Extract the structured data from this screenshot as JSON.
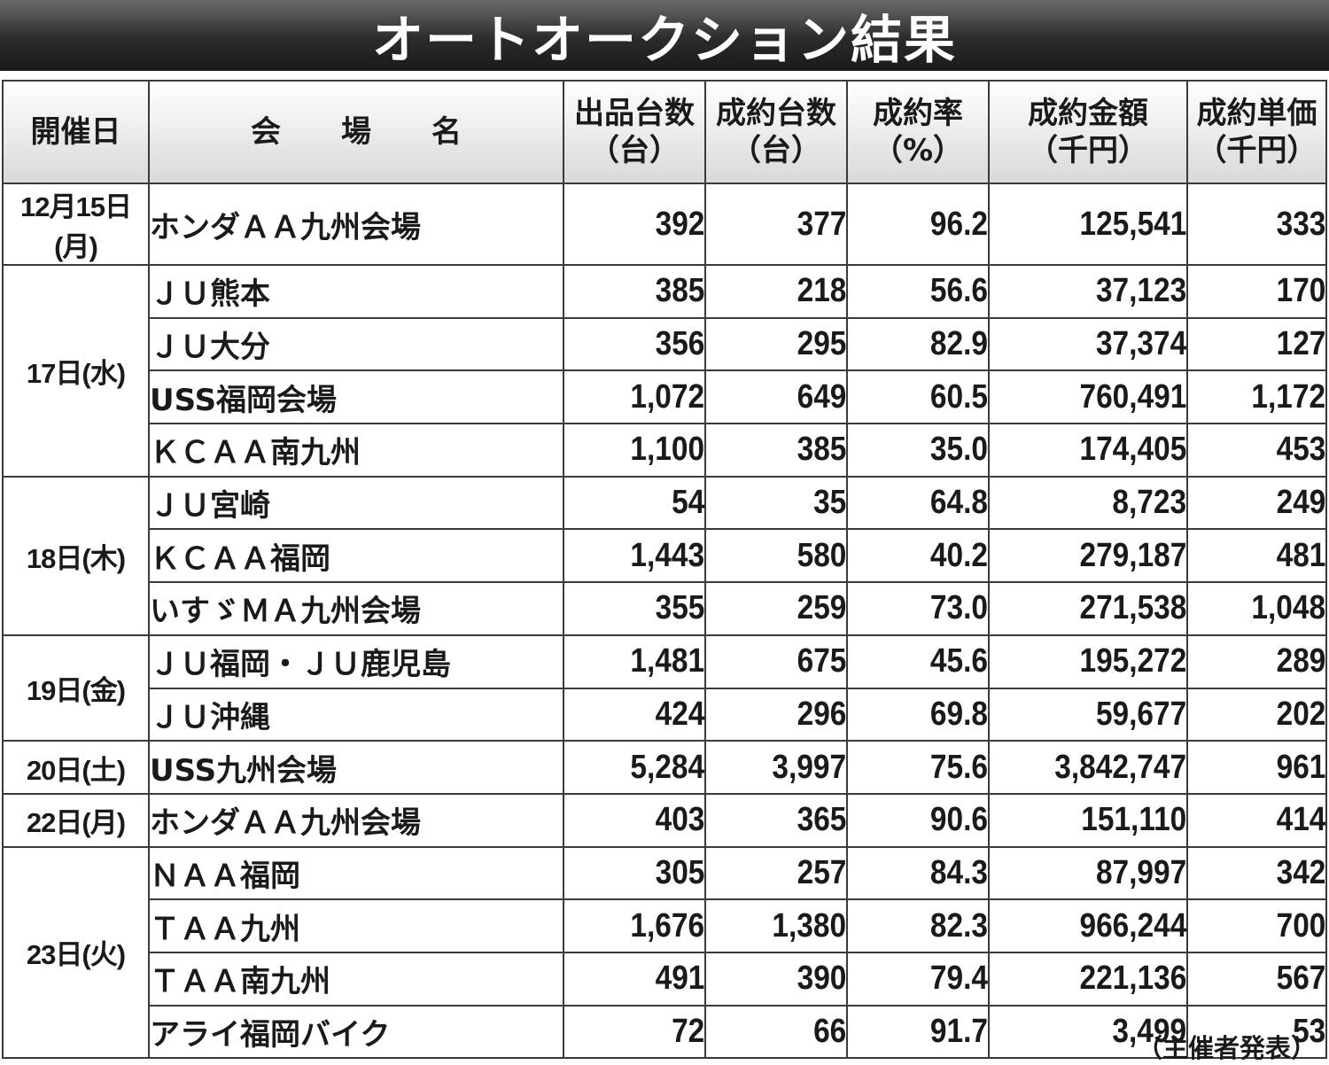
{
  "title": "オートオークション結果",
  "headers": {
    "date": "開催日",
    "venue": "会　　場　　名",
    "listed": [
      "出品台数",
      "（台）"
    ],
    "sold": [
      "成約台数",
      "（台）"
    ],
    "rate": [
      "成約率",
      "（%）"
    ],
    "amount": [
      "成約金額",
      "（千円）"
    ],
    "unit_price": [
      "成約単価",
      "（千円）"
    ]
  },
  "rows": [
    {
      "date": "12月15日(月)",
      "venue": "ホンダＡＡ九州会場",
      "listed": "392",
      "sold": "377",
      "rate": "96.2",
      "amount": "125,541",
      "unit_price": "333"
    },
    {
      "date": "17日(水)",
      "venue": "ＪＵ熊本",
      "listed": "385",
      "sold": "218",
      "rate": "56.6",
      "amount": "37,123",
      "unit_price": "170"
    },
    {
      "date": "",
      "venue": "ＪＵ大分",
      "listed": "356",
      "sold": "295",
      "rate": "82.9",
      "amount": "37,374",
      "unit_price": "127"
    },
    {
      "date": "",
      "venue": "USS福岡会場",
      "listed": "1,072",
      "sold": "649",
      "rate": "60.5",
      "amount": "760,491",
      "unit_price": "1,172"
    },
    {
      "date": "",
      "venue": "ＫＣＡＡ南九州",
      "listed": "1,100",
      "sold": "385",
      "rate": "35.0",
      "amount": "174,405",
      "unit_price": "453"
    },
    {
      "date": "18日(木)",
      "venue": "ＪＵ宮崎",
      "listed": "54",
      "sold": "35",
      "rate": "64.8",
      "amount": "8,723",
      "unit_price": "249"
    },
    {
      "date": "",
      "venue": "ＫＣＡＡ福岡",
      "listed": "1,443",
      "sold": "580",
      "rate": "40.2",
      "amount": "279,187",
      "unit_price": "481"
    },
    {
      "date": "",
      "venue": "いすゞＭＡ九州会場",
      "listed": "355",
      "sold": "259",
      "rate": "73.0",
      "amount": "271,538",
      "unit_price": "1,048"
    },
    {
      "date": "19日(金)",
      "venue": "ＪＵ福岡・ＪＵ鹿児島",
      "listed": "1,481",
      "sold": "675",
      "rate": "45.6",
      "amount": "195,272",
      "unit_price": "289"
    },
    {
      "date": "",
      "venue": "ＪＵ沖縄",
      "listed": "424",
      "sold": "296",
      "rate": "69.8",
      "amount": "59,677",
      "unit_price": "202"
    },
    {
      "date": "20日(土)",
      "venue": "USS九州会場",
      "listed": "5,284",
      "sold": "3,997",
      "rate": "75.6",
      "amount": "3,842,747",
      "unit_price": "961"
    },
    {
      "date": "22日(月)",
      "venue": "ホンダＡＡ九州会場",
      "listed": "403",
      "sold": "365",
      "rate": "90.6",
      "amount": "151,110",
      "unit_price": "414"
    },
    {
      "date": "23日(火)",
      "venue": "ＮＡＡ福岡",
      "listed": "305",
      "sold": "257",
      "rate": "84.3",
      "amount": "87,997",
      "unit_price": "342"
    },
    {
      "date": "",
      "venue": "ＴＡＡ九州",
      "listed": "1,676",
      "sold": "1,380",
      "rate": "82.3",
      "amount": "966,244",
      "unit_price": "700"
    },
    {
      "date": "",
      "venue": "ＴＡＡ南九州",
      "listed": "491",
      "sold": "390",
      "rate": "79.4",
      "amount": "221,136",
      "unit_price": "567"
    },
    {
      "date": "",
      "venue": "アライ福岡バイク",
      "listed": "72",
      "sold": "66",
      "rate": "91.7",
      "amount": "3,499",
      "unit_price": "53"
    }
  ],
  "footnote": "（主催者発表）"
}
